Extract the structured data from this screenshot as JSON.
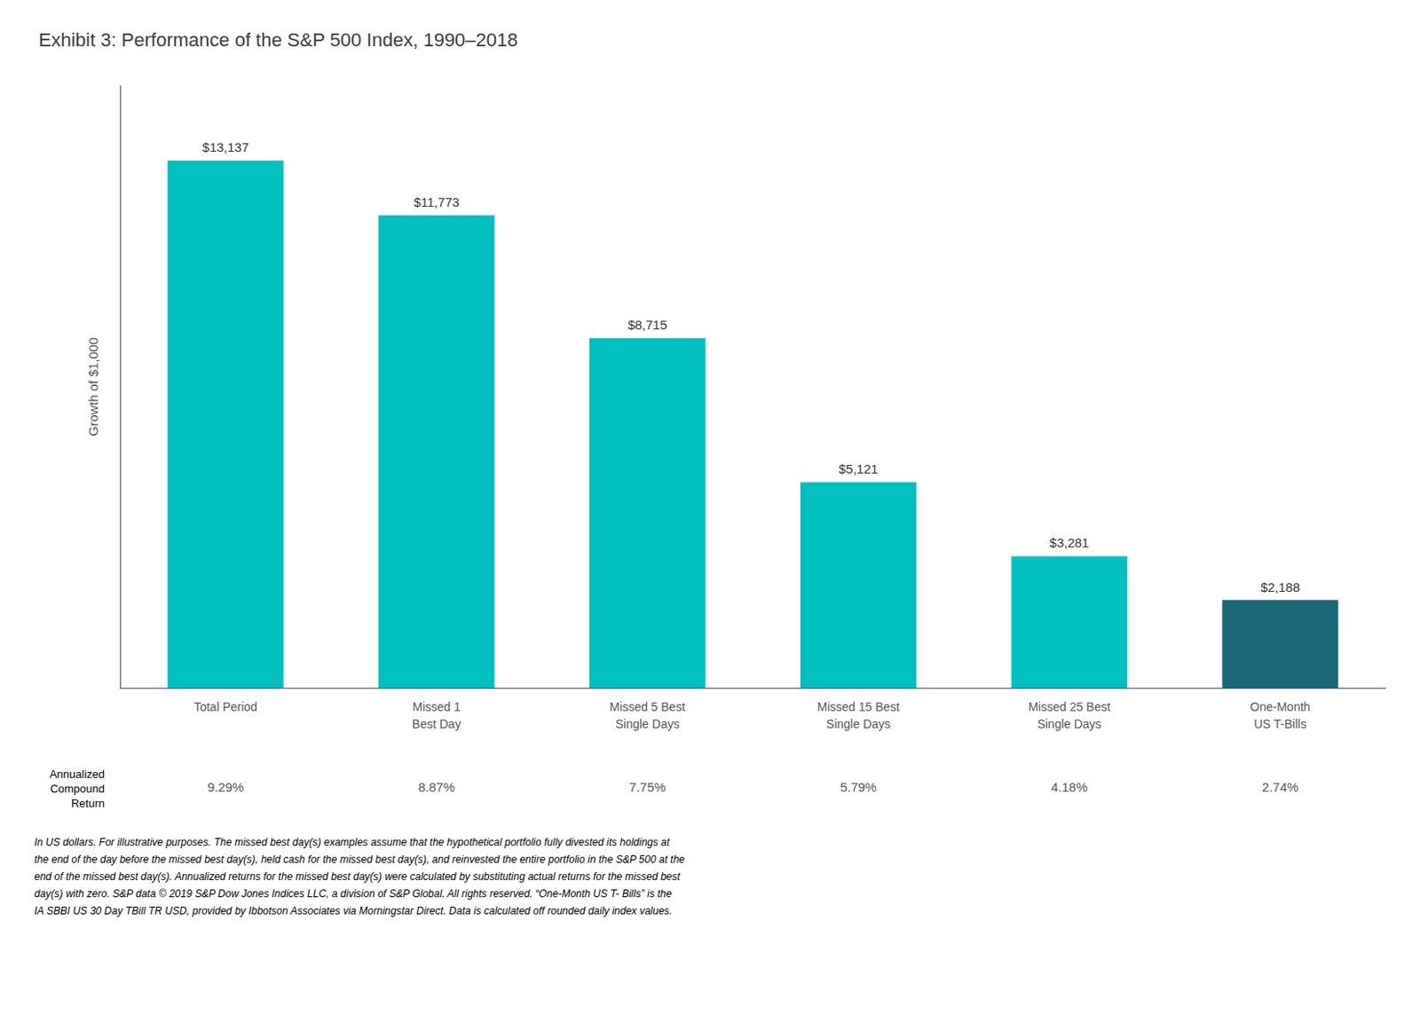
{
  "chart_data": {
    "type": "bar",
    "title": "Exhibit 3: Performance of the S&P 500 Index, 1990–2018",
    "categories": [
      "Total Period",
      "Missed 1\nBest Day",
      "Missed 5 Best\nSingle Days",
      "Missed 15 Best\nSingle Days",
      "Missed 25 Best\nSingle Days",
      "One-Month\nUS T-Bills"
    ],
    "values": [
      13137,
      11773,
      8715,
      5121,
      3281,
      2188
    ],
    "value_labels": [
      "$13,137",
      "$11,773",
      "$8,715",
      "$5,121",
      "$3,281",
      "$2,188"
    ],
    "data_labels": true,
    "colors": [
      "#00C0C0",
      "#00C0C0",
      "#00C0C0",
      "#00C0C0",
      "#00C0C0",
      "#1A6878"
    ],
    "ylabel": "Growth of $1,000",
    "ylim": [
      0,
      15000
    ],
    "tick_labels": "x",
    "grid": false,
    "annualized_label": "Annualized\nCompound\nReturn",
    "annualized_values": [
      "9.29%",
      "8.87%",
      "7.75%",
      "5.79%",
      "4.18%",
      "2.74%"
    ],
    "footnote": "In US dollars. For illustrative purposes. The missed best day(s) examples assume that the hypothetical portfolio fully divested its holdings at\nthe end of the day before the missed best day(s), held cash for the missed best day(s), and reinvested the entire portfolio in the S&P 500 at the\nend of the missed best day(s). Annualized returns for the missed best day(s) were calculated by substituting actual returns for the missed best\nday(s) with zero. S&P data © 2019 S&P Dow Jones Indices LLC, a division of S&P Global. All rights reserved. “One-Month US T- Bills” is the\nIA SBBI US 30 Day TBill TR USD, provided by Ibbotson Associates via Morningstar Direct. Data is calculated off rounded daily index values."
  }
}
